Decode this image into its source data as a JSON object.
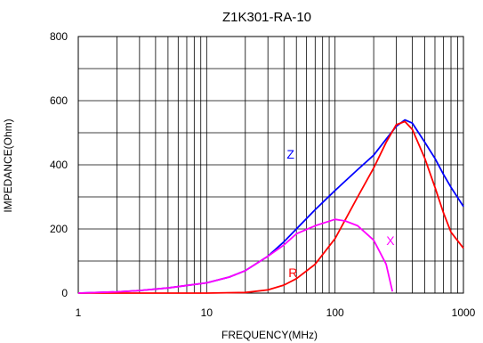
{
  "chart_data": {
    "type": "line",
    "title": "Z1K301-RA-10",
    "xlabel": "FREQUENCY(MHz)",
    "ylabel": "IMPEDANCE(Ohm)",
    "x_scale": "log",
    "xlim": [
      1,
      1000
    ],
    "ylim": [
      0,
      800
    ],
    "x_ticks": [
      1,
      10,
      100,
      1000
    ],
    "x_tick_labels": [
      "1",
      "10",
      "100",
      "1000"
    ],
    "y_ticks": [
      0,
      200,
      400,
      600,
      800
    ],
    "y_tick_labels": [
      "0",
      "200",
      "400",
      "600",
      "800"
    ],
    "grid": true,
    "series": [
      {
        "name": "Z",
        "color": "#0000ff",
        "x": [
          1,
          2,
          3,
          5,
          10,
          15,
          20,
          30,
          40,
          50,
          70,
          100,
          150,
          200,
          250,
          300,
          350,
          400,
          500,
          600,
          700,
          800,
          1000
        ],
        "y": [
          0,
          4,
          8,
          16,
          32,
          50,
          70,
          115,
          160,
          200,
          260,
          320,
          385,
          430,
          480,
          520,
          540,
          530,
          470,
          420,
          370,
          330,
          270
        ]
      },
      {
        "name": "R",
        "color": "#ff0000",
        "x": [
          1,
          10,
          20,
          30,
          40,
          50,
          70,
          100,
          150,
          200,
          250,
          300,
          350,
          400,
          500,
          600,
          700,
          800,
          1000
        ],
        "y": [
          0,
          0,
          2,
          10,
          25,
          45,
          90,
          170,
          300,
          390,
          470,
          525,
          535,
          510,
          420,
          330,
          250,
          190,
          140
        ]
      },
      {
        "name": "X",
        "color": "#ff00ff",
        "x": [
          1,
          2,
          3,
          5,
          10,
          15,
          20,
          30,
          40,
          50,
          70,
          100,
          120,
          150,
          200,
          250,
          280
        ],
        "y": [
          0,
          4,
          8,
          16,
          32,
          50,
          70,
          115,
          150,
          185,
          210,
          230,
          225,
          210,
          165,
          90,
          5
        ]
      }
    ],
    "annotations": [
      {
        "text": "Z",
        "x": 45,
        "y": 420,
        "color": "#0000ff"
      },
      {
        "text": "R",
        "x": 47,
        "y": 50,
        "color": "#ff0000"
      },
      {
        "text": "X",
        "x": 270,
        "y": 150,
        "color": "#ff00ff"
      }
    ]
  }
}
